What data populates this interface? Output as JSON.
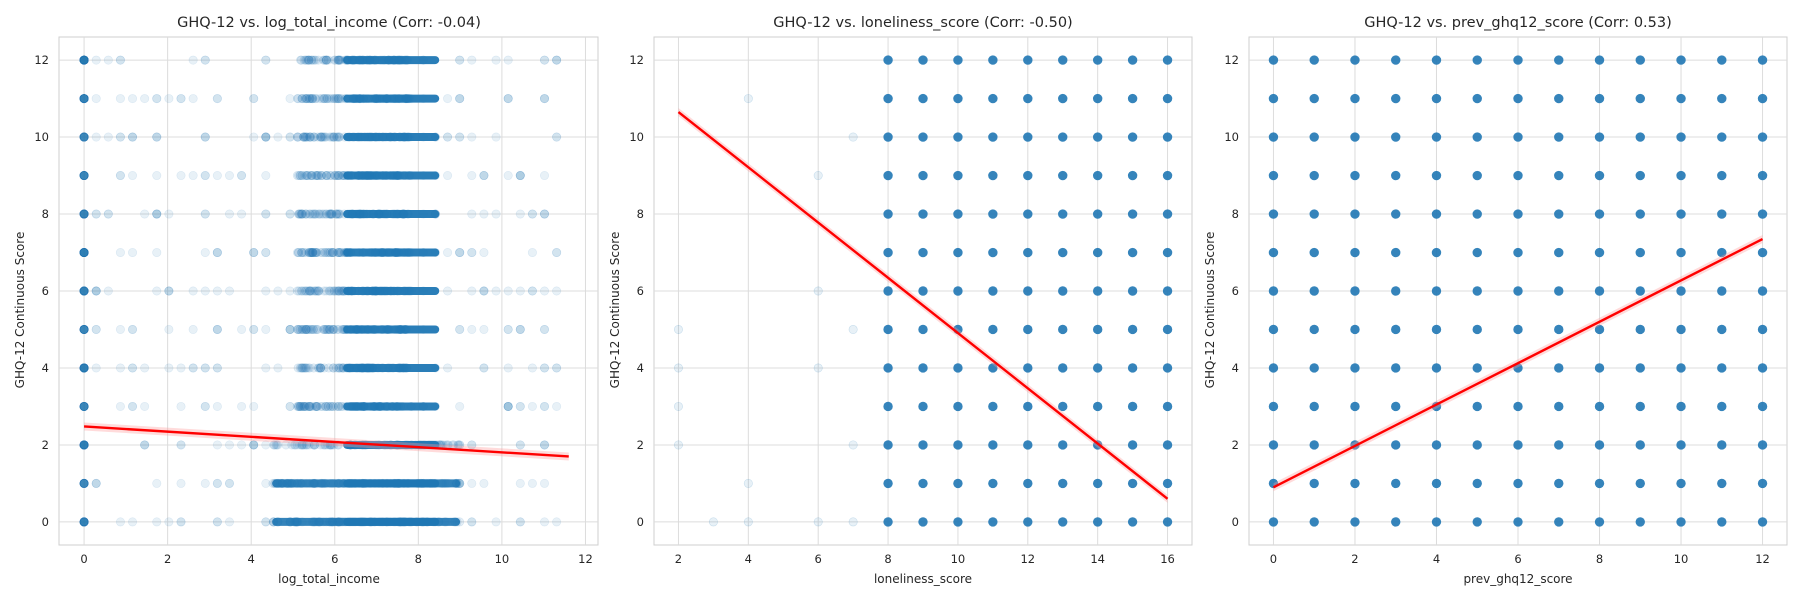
{
  "colors": {
    "points": "#1f77b4",
    "regression": "#ff0000",
    "band": "#ff9999",
    "grid": "#dcdcdc",
    "frame": "#cfcfcf",
    "background": "#ffffff"
  },
  "chart_data": [
    {
      "type": "scatter",
      "title": "GHQ-12 vs. log_total_income (Corr: -0.04)",
      "xlabel": "log_total_income",
      "ylabel": "GHQ-12 Continuous Score",
      "xlim": [
        -0.6,
        12.3
      ],
      "ylim": [
        -0.6,
        12.6
      ],
      "xticks": [
        0,
        2,
        4,
        6,
        8,
        10,
        12
      ],
      "yticks": [
        0,
        2,
        4,
        6,
        8,
        10,
        12
      ],
      "grid": true,
      "point_alpha": 0.1,
      "dense_x_range": [
        4.5,
        9.0
      ],
      "sparse_x_range": [
        0,
        11.6
      ],
      "y_values": [
        0,
        1,
        2,
        3,
        4,
        5,
        6,
        7,
        8,
        9,
        10,
        11,
        12
      ],
      "regression": {
        "x": [
          0,
          11.6
        ],
        "y": [
          2.48,
          1.7
        ]
      }
    },
    {
      "type": "scatter",
      "title": "GHQ-12 vs. loneliness_score (Corr: -0.50)",
      "xlabel": "loneliness_score",
      "ylabel": "GHQ-12 Continuous Score",
      "xlim": [
        1.3,
        16.7
      ],
      "ylim": [
        -0.6,
        12.6
      ],
      "xticks": [
        2,
        4,
        6,
        8,
        10,
        12,
        14,
        16
      ],
      "yticks": [
        0,
        2,
        4,
        6,
        8,
        10,
        12
      ],
      "grid": true,
      "point_alpha": 0.9,
      "dense_x_range": [
        8,
        16
      ],
      "y_values": [
        0,
        1,
        2,
        3,
        4,
        5,
        6,
        7,
        8,
        9,
        10,
        11,
        12
      ],
      "faint_points": [
        [
          2,
          2
        ],
        [
          2,
          3
        ],
        [
          2,
          4
        ],
        [
          2,
          5
        ],
        [
          3,
          0
        ],
        [
          4,
          0
        ],
        [
          4,
          1
        ],
        [
          4,
          11
        ],
        [
          6,
          0
        ],
        [
          6,
          4
        ],
        [
          6,
          6
        ],
        [
          6,
          9
        ],
        [
          7,
          0
        ],
        [
          7,
          2
        ],
        [
          7,
          5
        ],
        [
          7,
          10
        ]
      ],
      "regression": {
        "x": [
          2,
          16
        ],
        "y": [
          10.65,
          0.6
        ]
      }
    },
    {
      "type": "scatter",
      "title": "GHQ-12 vs. prev_ghq12_score (Corr: 0.53)",
      "xlabel": "prev_ghq12_score",
      "ylabel": "GHQ-12 Continuous Score",
      "xlim": [
        -0.6,
        12.6
      ],
      "ylim": [
        -0.6,
        12.6
      ],
      "xticks": [
        0,
        2,
        4,
        6,
        8,
        10,
        12
      ],
      "yticks": [
        0,
        2,
        4,
        6,
        8,
        10,
        12
      ],
      "grid": true,
      "point_alpha": 0.9,
      "x_values": [
        0,
        1,
        2,
        3,
        4,
        5,
        6,
        7,
        8,
        9,
        10,
        11,
        12
      ],
      "y_values": [
        0,
        1,
        2,
        3,
        4,
        5,
        6,
        7,
        8,
        9,
        10,
        11,
        12
      ],
      "regression": {
        "x": [
          0,
          12
        ],
        "y": [
          0.9,
          7.35
        ]
      }
    }
  ]
}
